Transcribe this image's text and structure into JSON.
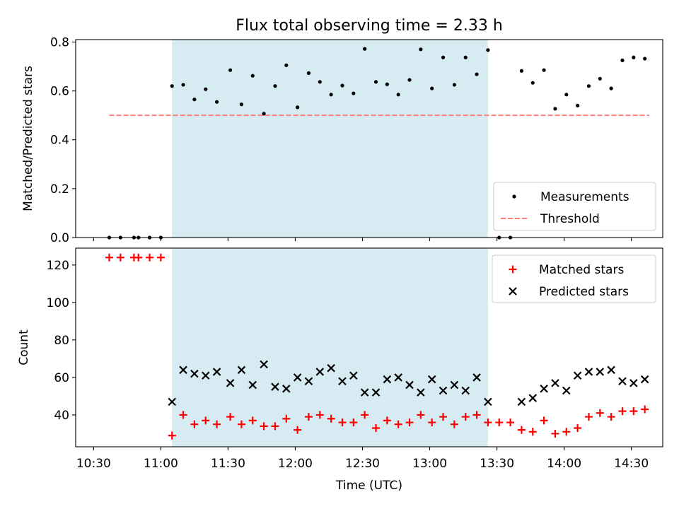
{
  "title": "Flux total observing time = 2.33 h",
  "colors": {
    "shade": "#add8e6",
    "measurement": "#000000",
    "threshold": "#ff7f7f",
    "matched": "#ff0000",
    "predicted": "#000000"
  },
  "chart_data": [
    {
      "type": "scatter",
      "ylabel": "Matched/Predicted stars",
      "xlabel": "",
      "x_unit": "time (UTC)",
      "xlim": [
        "10:22",
        "14:44"
      ],
      "ylim": [
        0,
        0.81
      ],
      "yticks": [
        0.0,
        0.2,
        0.4,
        0.6,
        0.8
      ],
      "ytick_labels": [
        "0.0",
        "0.2",
        "0.4",
        "0.6",
        "0.8"
      ],
      "xtick_labels": [
        "10:30",
        "11:00",
        "11:30",
        "12:00",
        "12:30",
        "13:00",
        "13:30",
        "14:00",
        "14:30"
      ],
      "shaded_span": [
        "11:05",
        "13:26"
      ],
      "legend_location": "lower right",
      "grid": false,
      "threshold": {
        "name": "Threshold",
        "y": 0.5,
        "x_range": [
          "10:37",
          "14:38"
        ],
        "style": "dashed"
      },
      "series": [
        {
          "name": "Measurements",
          "marker": "dot",
          "points": [
            [
              "10:37",
              0.0
            ],
            [
              "10:42",
              0.0
            ],
            [
              "10:48",
              0.0
            ],
            [
              "10:50",
              0.0
            ],
            [
              "10:55",
              0.0
            ],
            [
              "11:00",
              0.0
            ],
            [
              "11:05",
              0.62
            ],
            [
              "11:10",
              0.625
            ],
            [
              "11:15",
              0.565
            ],
            [
              "11:20",
              0.607
            ],
            [
              "11:25",
              0.555
            ],
            [
              "11:31",
              0.685
            ],
            [
              "11:36",
              0.545
            ],
            [
              "11:41",
              0.662
            ],
            [
              "11:46",
              0.507
            ],
            [
              "11:51",
              0.62
            ],
            [
              "11:56",
              0.705
            ],
            [
              "12:01",
              0.533
            ],
            [
              "12:06",
              0.673
            ],
            [
              "12:11",
              0.637
            ],
            [
              "12:16",
              0.585
            ],
            [
              "12:21",
              0.622
            ],
            [
              "12:26",
              0.59
            ],
            [
              "12:31",
              0.772
            ],
            [
              "12:36",
              0.637
            ],
            [
              "12:41",
              0.627
            ],
            [
              "12:46",
              0.585
            ],
            [
              "12:51",
              0.645
            ],
            [
              "12:56",
              0.77
            ],
            [
              "13:01",
              0.61
            ],
            [
              "13:06",
              0.737
            ],
            [
              "13:11",
              0.625
            ],
            [
              "13:16",
              0.737
            ],
            [
              "13:21",
              0.668
            ],
            [
              "13:26",
              0.767
            ],
            [
              "13:31",
              0.0
            ],
            [
              "13:36",
              0.0
            ],
            [
              "13:41",
              0.682
            ],
            [
              "13:46",
              0.633
            ],
            [
              "13:51",
              0.685
            ],
            [
              "13:56",
              0.527
            ],
            [
              "14:01",
              0.585
            ],
            [
              "14:06",
              0.54
            ],
            [
              "14:11",
              0.62
            ],
            [
              "14:16",
              0.65
            ],
            [
              "14:21",
              0.61
            ],
            [
              "14:26",
              0.725
            ],
            [
              "14:31",
              0.737
            ],
            [
              "14:36",
              0.732
            ]
          ]
        }
      ]
    },
    {
      "type": "scatter",
      "ylabel": "Count",
      "xlabel": "Time (UTC)",
      "xlim": [
        "10:22",
        "14:44"
      ],
      "ylim": [
        23,
        129
      ],
      "yticks": [
        40,
        60,
        80,
        100,
        120
      ],
      "ytick_labels": [
        "40",
        "60",
        "80",
        "100",
        "120"
      ],
      "xtick_labels": [
        "10:30",
        "11:00",
        "11:30",
        "12:00",
        "12:30",
        "13:00",
        "13:30",
        "14:00",
        "14:30"
      ],
      "shaded_span": [
        "11:05",
        "13:26"
      ],
      "legend_location": "upper right",
      "grid": false,
      "series": [
        {
          "name": "Matched stars",
          "marker": "plus",
          "points": [
            [
              "10:37",
              124
            ],
            [
              "10:42",
              124
            ],
            [
              "10:48",
              124
            ],
            [
              "10:50",
              124
            ],
            [
              "10:55",
              124
            ],
            [
              "11:00",
              124
            ],
            [
              "11:05",
              29
            ],
            [
              "11:10",
              40
            ],
            [
              "11:15",
              35
            ],
            [
              "11:20",
              37
            ],
            [
              "11:25",
              35
            ],
            [
              "11:31",
              39
            ],
            [
              "11:36",
              35
            ],
            [
              "11:41",
              37
            ],
            [
              "11:46",
              34
            ],
            [
              "11:51",
              34
            ],
            [
              "11:56",
              38
            ],
            [
              "12:01",
              32
            ],
            [
              "12:06",
              39
            ],
            [
              "12:11",
              40
            ],
            [
              "12:16",
              38
            ],
            [
              "12:21",
              36
            ],
            [
              "12:26",
              36
            ],
            [
              "12:31",
              40
            ],
            [
              "12:36",
              33
            ],
            [
              "12:41",
              37
            ],
            [
              "12:46",
              35
            ],
            [
              "12:51",
              36
            ],
            [
              "12:56",
              40
            ],
            [
              "13:01",
              36
            ],
            [
              "13:06",
              39
            ],
            [
              "13:11",
              35
            ],
            [
              "13:16",
              39
            ],
            [
              "13:21",
              40
            ],
            [
              "13:26",
              36
            ],
            [
              "13:31",
              36
            ],
            [
              "13:36",
              36
            ],
            [
              "13:41",
              32
            ],
            [
              "13:46",
              31
            ],
            [
              "13:51",
              37
            ],
            [
              "13:56",
              30
            ],
            [
              "14:01",
              31
            ],
            [
              "14:06",
              33
            ],
            [
              "14:11",
              39
            ],
            [
              "14:16",
              41
            ],
            [
              "14:21",
              39
            ],
            [
              "14:26",
              42
            ],
            [
              "14:31",
              42
            ],
            [
              "14:36",
              43
            ]
          ]
        },
        {
          "name": "Predicted stars",
          "marker": "x",
          "points": [
            [
              "11:05",
              47
            ],
            [
              "11:10",
              64
            ],
            [
              "11:15",
              62
            ],
            [
              "11:20",
              61
            ],
            [
              "11:25",
              63
            ],
            [
              "11:31",
              57
            ],
            [
              "11:36",
              64
            ],
            [
              "11:41",
              56
            ],
            [
              "11:46",
              67
            ],
            [
              "11:51",
              55
            ],
            [
              "11:56",
              54
            ],
            [
              "12:01",
              60
            ],
            [
              "12:06",
              58
            ],
            [
              "12:11",
              63
            ],
            [
              "12:16",
              65
            ],
            [
              "12:21",
              58
            ],
            [
              "12:26",
              61
            ],
            [
              "12:31",
              52
            ],
            [
              "12:36",
              52
            ],
            [
              "12:41",
              59
            ],
            [
              "12:46",
              60
            ],
            [
              "12:51",
              56
            ],
            [
              "12:56",
              52
            ],
            [
              "13:01",
              59
            ],
            [
              "13:06",
              53
            ],
            [
              "13:11",
              56
            ],
            [
              "13:16",
              53
            ],
            [
              "13:21",
              60
            ],
            [
              "13:26",
              47
            ],
            [
              "13:41",
              47
            ],
            [
              "13:46",
              49
            ],
            [
              "13:51",
              54
            ],
            [
              "13:56",
              57
            ],
            [
              "14:01",
              53
            ],
            [
              "14:06",
              61
            ],
            [
              "14:11",
              63
            ],
            [
              "14:16",
              63
            ],
            [
              "14:21",
              64
            ],
            [
              "14:26",
              58
            ],
            [
              "14:31",
              57
            ],
            [
              "14:36",
              59
            ]
          ]
        }
      ]
    }
  ]
}
